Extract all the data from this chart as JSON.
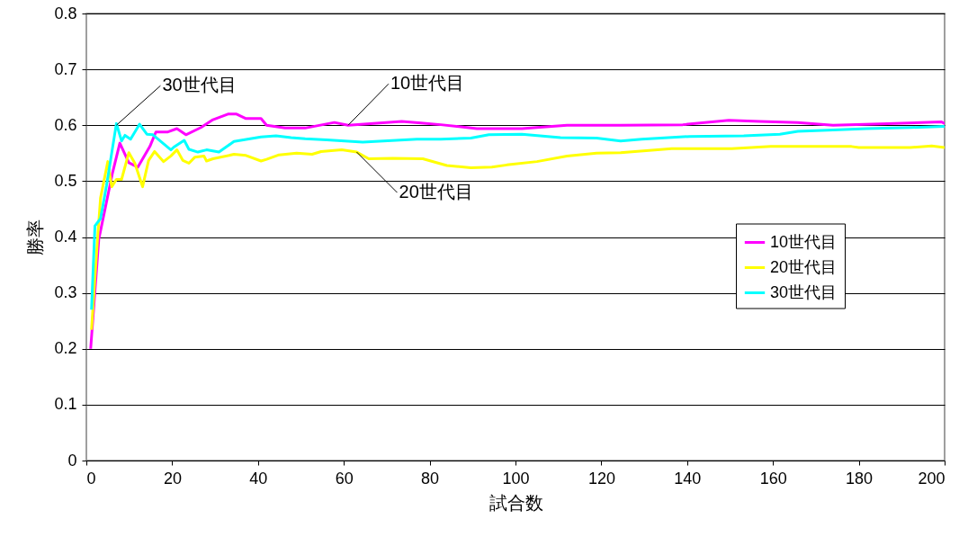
{
  "chart_data": {
    "type": "line",
    "xlabel": "試合数",
    "ylabel": "勝率",
    "xlim": [
      0,
      200
    ],
    "xticks": [
      0,
      20,
      40,
      60,
      80,
      100,
      120,
      140,
      160,
      180,
      200
    ],
    "ylim": [
      0,
      0.8
    ],
    "yticks": [
      0,
      0.1,
      0.2,
      0.3,
      0.4,
      0.5,
      0.6,
      0.7,
      0.8
    ],
    "grid": "y",
    "legend": "right",
    "marker": "none",
    "line_style": "solid",
    "annotations": [
      {
        "text": "30世代目",
        "x": 7,
        "y": 0.6
      },
      {
        "text": "10世代目",
        "x": 61,
        "y": 0.6
      },
      {
        "text": "20世代目",
        "x": 63,
        "y": 0.552
      }
    ],
    "series": [
      {
        "name": "10世代目",
        "color": "#ff00ff",
        "x": [
          1,
          2.9,
          6.1,
          7.8,
          9.9,
          12,
          14.8,
          16.2,
          19,
          21.1,
          23.2,
          26.7,
          29.5,
          33,
          35,
          37.2,
          40.7,
          42,
          46.3,
          51,
          57.8,
          61,
          73.5,
          78,
          82.6,
          91,
          101.5,
          112,
          124.5,
          139,
          149.7,
          157,
          165.8,
          174,
          186.7,
          199.3,
          200
        ],
        "values": [
          0.2,
          0.396,
          0.515,
          0.568,
          0.533,
          0.525,
          0.562,
          0.588,
          0.588,
          0.594,
          0.583,
          0.596,
          0.61,
          0.62,
          0.62,
          0.612,
          0.612,
          0.6,
          0.595,
          0.595,
          0.605,
          0.6,
          0.607,
          0.604,
          0.601,
          0.594,
          0.594,
          0.6,
          0.6,
          0.601,
          0.609,
          0.607,
          0.605,
          0.6,
          0.603,
          0.606,
          0.603
        ]
      },
      {
        "name": "20世代目",
        "color": "#ffff00",
        "x": [
          1.2,
          2.6,
          3.3,
          5,
          5.9,
          7,
          8.2,
          9.9,
          11.3,
          13.1,
          14.5,
          15.9,
          18,
          19.7,
          21.1,
          22.5,
          23.9,
          25.3,
          27.4,
          28,
          29.5,
          34.4,
          37.2,
          40.7,
          42,
          44.9,
          49,
          52.6,
          54.7,
          59.5,
          63,
          65.8,
          71.4,
          78.4,
          84,
          89.6,
          94.5,
          98,
          105,
          112,
          118.9,
          124.5,
          136.4,
          150.4,
          159.5,
          178.3,
          180,
          192,
          197,
          200
        ],
        "values": [
          0.234,
          0.396,
          0.47,
          0.535,
          0.49,
          0.503,
          0.503,
          0.551,
          0.532,
          0.49,
          0.537,
          0.553,
          0.535,
          0.545,
          0.556,
          0.537,
          0.532,
          0.543,
          0.545,
          0.536,
          0.54,
          0.548,
          0.546,
          0.536,
          0.539,
          0.547,
          0.55,
          0.548,
          0.553,
          0.556,
          0.552,
          0.54,
          0.541,
          0.54,
          0.528,
          0.524,
          0.525,
          0.529,
          0.535,
          0.545,
          0.55,
          0.551,
          0.558,
          0.558,
          0.562,
          0.562,
          0.56,
          0.56,
          0.563,
          0.56
        ]
      },
      {
        "name": "30世代目",
        "color": "#00ffff",
        "x": [
          1.2,
          2,
          3.3,
          4.7,
          7,
          8.2,
          9,
          10.3,
          12.4,
          14.1,
          15.5,
          19.7,
          20.4,
          22.8,
          23.9,
          26,
          28,
          30.9,
          34.4,
          40.7,
          44.2,
          47.7,
          51,
          56,
          64.4,
          77,
          82.6,
          89.6,
          93.8,
          101.5,
          110.5,
          118.9,
          124.5,
          129.4,
          140.6,
          153.2,
          161.6,
          165.8,
          172.7,
          181.8,
          192.3,
          200
        ],
        "values": [
          0.27,
          0.42,
          0.433,
          0.492,
          0.603,
          0.572,
          0.582,
          0.575,
          0.602,
          0.584,
          0.583,
          0.556,
          0.561,
          0.573,
          0.557,
          0.552,
          0.556,
          0.552,
          0.571,
          0.579,
          0.581,
          0.578,
          0.576,
          0.574,
          0.57,
          0.575,
          0.575,
          0.577,
          0.583,
          0.584,
          0.578,
          0.577,
          0.572,
          0.575,
          0.58,
          0.581,
          0.584,
          0.589,
          0.591,
          0.594,
          0.596,
          0.598
        ]
      }
    ]
  }
}
